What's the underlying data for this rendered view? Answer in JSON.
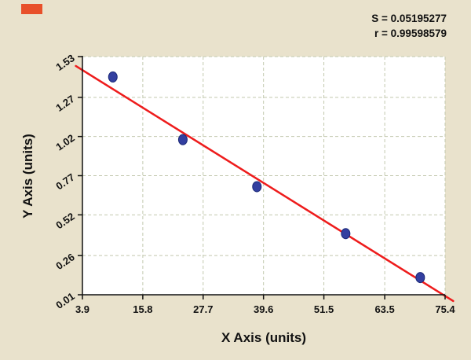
{
  "stats": {
    "s_label": "S = 0.05195277",
    "r_label": "r = 0.99598579"
  },
  "chart_data": {
    "type": "scatter",
    "title": "",
    "xlabel": "X Axis (units)",
    "ylabel": "Y Axis (units)",
    "xlim": [
      3.9,
      75.4
    ],
    "ylim": [
      0.01,
      1.53
    ],
    "x_ticks": [
      "3.9",
      "15.8",
      "27.7",
      "39.6",
      "51.5",
      "63.5",
      "75.4"
    ],
    "y_ticks": [
      "0.01",
      "0.26",
      "0.52",
      "0.77",
      "1.02",
      "1.27",
      "1.53"
    ],
    "grid": true,
    "legend": "none",
    "points": [
      {
        "x": 9.9,
        "y": 1.4
      },
      {
        "x": 23.7,
        "y": 1.0
      },
      {
        "x": 38.3,
        "y": 0.7
      },
      {
        "x": 55.8,
        "y": 0.4
      },
      {
        "x": 70.5,
        "y": 0.12
      }
    ],
    "fit_line": {
      "x1": 2.6,
      "y1": 1.47,
      "x2": 77.0,
      "y2": -0.03
    },
    "colors": {
      "background": "#e9e2cc",
      "plot_background": "#ffffff",
      "grid": "#c2c8ae",
      "point_fill": "#333fa0",
      "point_stroke": "#1c2a78",
      "fit_line": "#ee1c1c",
      "axis": "#111111",
      "corner_mark": "#e8502a"
    }
  }
}
